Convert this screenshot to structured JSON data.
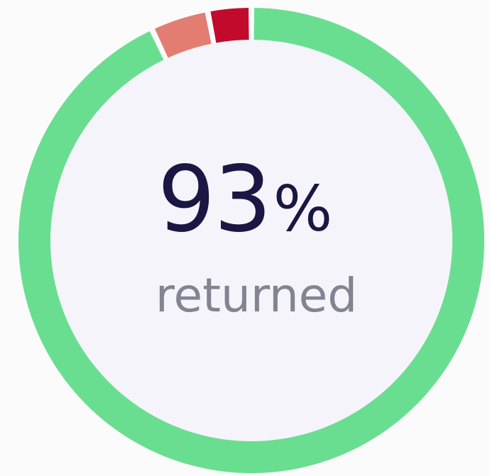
{
  "chart_data": {
    "type": "pie",
    "variant": "donut",
    "slices": [
      {
        "value": 93,
        "color": "#6ade90"
      },
      {
        "value": 4,
        "color": "#e37d71"
      },
      {
        "value": 3,
        "color": "#c20a2d"
      }
    ],
    "center": {
      "value": "93",
      "unit": "%",
      "caption": "returned"
    },
    "colors": {
      "center_fill": "#f5f4fa",
      "background": "#fbfbfc",
      "value_text": "#1a1744",
      "caption_text": "#838391"
    }
  }
}
